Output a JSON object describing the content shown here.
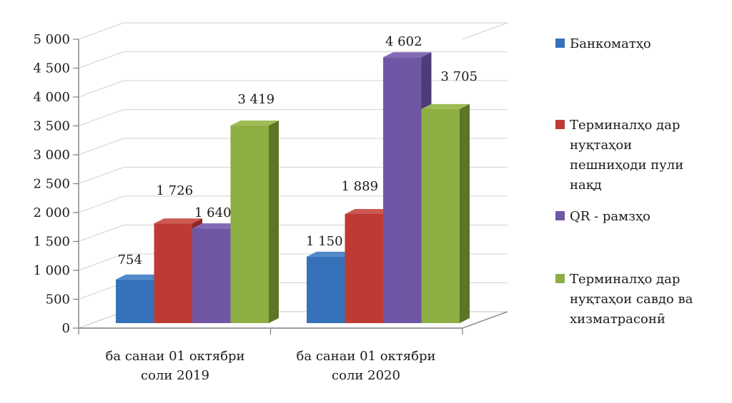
{
  "chart_data": {
    "type": "bar",
    "style": "3d-clustered-column",
    "title": "",
    "xlabel": "",
    "ylabel": "",
    "grid": true,
    "legend_position": "right",
    "categories": [
      "ба санаи 01 октябри\nсоли 2019",
      "ба санаи 01 октябри\nсоли 2020"
    ],
    "series": [
      {
        "name": "Банкоматҳо",
        "values": [
          754,
          1150
        ],
        "value_labels": [
          "754",
          "1 150"
        ],
        "color": "#3672b9",
        "color_side": "#1f4e8c",
        "color_top": "#5189c9"
      },
      {
        "name": "Терминалҳо дар нуқтаҳои пешниҳоди пули нақд",
        "values": [
          1726,
          1889
        ],
        "value_labels": [
          "1 726",
          "1 889"
        ],
        "color": "#be3a34",
        "color_side": "#8e2723",
        "color_top": "#cb5a52"
      },
      {
        "name": "QR - рамзҳо",
        "values": [
          1640,
          4602
        ],
        "value_labels": [
          "1 640",
          "4 602"
        ],
        "color": "#6f57a5",
        "color_side": "#4e3c78",
        "color_top": "#8469b6"
      },
      {
        "name": "Терминалҳо дар нуқтаҳои савдо ва хизматрасонӣ",
        "values": [
          3419,
          3705
        ],
        "value_labels": [
          "3 419",
          "3 705"
        ],
        "color": "#8cae43",
        "color_side": "#5d7527",
        "color_top": "#9dbd55"
      }
    ],
    "y_axis": {
      "min": 0,
      "max": 5000,
      "step": 500,
      "tick_labels": [
        "0",
        "500",
        "1 000",
        "1 500",
        "2 000",
        "2 500",
        "3 000",
        "3 500",
        "4 000",
        "4 500",
        "5 000"
      ]
    }
  },
  "legend": {
    "items": [
      {
        "label": "Банкоматҳо",
        "color": "#3672b9"
      },
      {
        "label": "Терминалҳо дар\nнуқтаҳои\nпешниҳоди пули\nнақд",
        "color": "#be3a34"
      },
      {
        "label": "QR - рамзҳо",
        "color": "#6f57a5"
      },
      {
        "label": "Терминалҳо дар\nнуқтаҳои савдо ва\nхизматрасонӣ",
        "color": "#8cae43"
      }
    ]
  },
  "colors": {
    "gridline": "#d9d9d9",
    "axis": "#808080",
    "floor_edge": "#c6c6c6",
    "text": "#1c1c1c"
  }
}
